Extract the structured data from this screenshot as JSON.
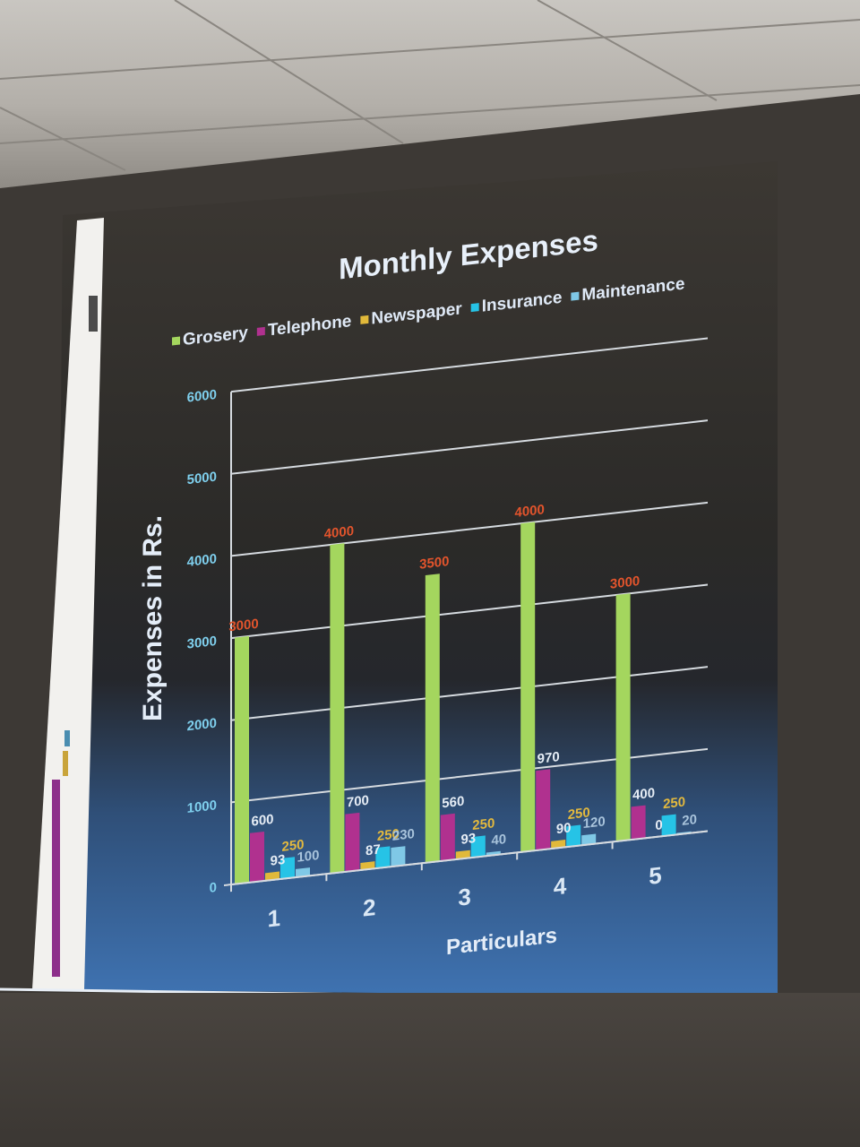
{
  "chart_data": {
    "type": "bar",
    "title": "Monthly Expenses",
    "xlabel": "Particulars",
    "ylabel": "Expenses in Rs.",
    "categories": [
      "1",
      "2",
      "3",
      "4",
      "5"
    ],
    "ylim": [
      0,
      6000
    ],
    "yticks": [
      "0",
      "1000",
      "2000",
      "3000",
      "4000",
      "5000",
      "6000"
    ],
    "grid": true,
    "legend_position": "top",
    "series": [
      {
        "name": "Grosery",
        "color": "#a4d65e",
        "values": [
          3000,
          4000,
          3500,
          4000,
          3000
        ],
        "labels": [
          "3000",
          "4000",
          "3500",
          "4000",
          "3000"
        ],
        "label_color": "#e2542c"
      },
      {
        "name": "Telephone",
        "color": "#b0318f",
        "values": [
          600,
          700,
          560,
          970,
          400
        ],
        "labels": [
          "600",
          "700",
          "560",
          "970",
          "400"
        ],
        "label_color": "#e6edf5"
      },
      {
        "name": "Newspaper",
        "color": "#e1b93a",
        "values": [
          93,
          87,
          93,
          90,
          0
        ],
        "labels": [
          "93",
          "87",
          "93",
          "90",
          "0"
        ],
        "label_color": "#e6edf5"
      },
      {
        "name": "Insurance",
        "color": "#26c3e6",
        "values": [
          250,
          250,
          250,
          250,
          250
        ],
        "labels": [
          "250",
          "250",
          "250",
          "250",
          "250"
        ],
        "label_color": "#e3b93e"
      },
      {
        "name": "Maintenance",
        "color": "#7fc8e6",
        "values": [
          100,
          230,
          40,
          120,
          20
        ],
        "labels": [
          "100",
          "230",
          "40",
          "120",
          "20"
        ],
        "label_color": "#a8c3db"
      }
    ]
  }
}
